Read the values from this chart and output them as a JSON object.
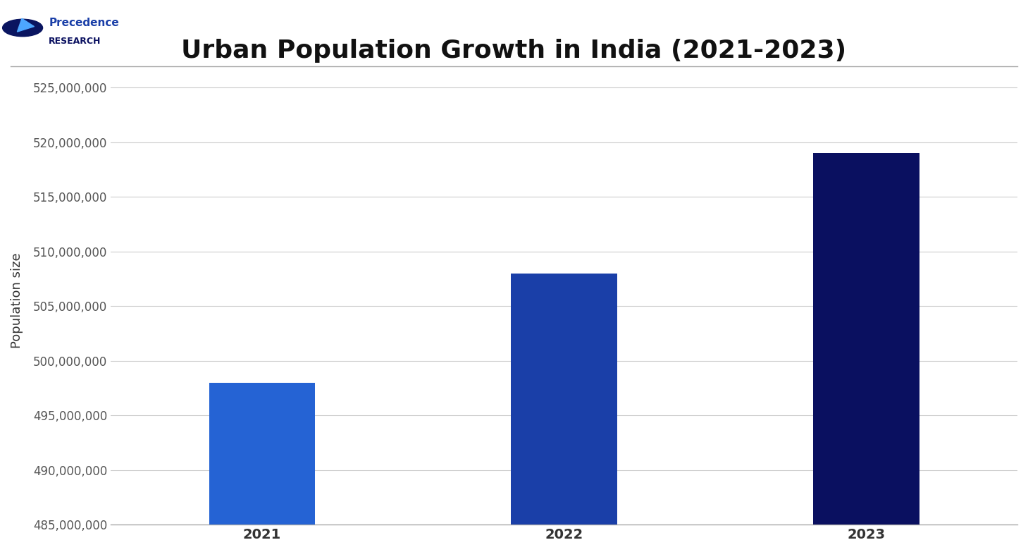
{
  "title": "Urban Population Growth in India (2021-2023)",
  "categories": [
    "2021",
    "2022",
    "2023"
  ],
  "values": [
    498000000,
    508000000,
    519000000
  ],
  "bar_colors": [
    "#2563d4",
    "#1a3fa8",
    "#0a1060"
  ],
  "ylabel": "Population size",
  "ylim": [
    485000000,
    526000000
  ],
  "yticks": [
    485000000,
    490000000,
    495000000,
    500000000,
    505000000,
    510000000,
    515000000,
    520000000,
    525000000
  ],
  "background_color": "#ffffff",
  "plot_area_color": "#ffffff",
  "grid_color": "#cccccc",
  "title_fontsize": 26,
  "ylabel_fontsize": 13,
  "tick_fontsize": 12,
  "bar_width": 0.35,
  "logo_text_line1": "Precedence",
  "logo_text_line2": "RESEARCH"
}
